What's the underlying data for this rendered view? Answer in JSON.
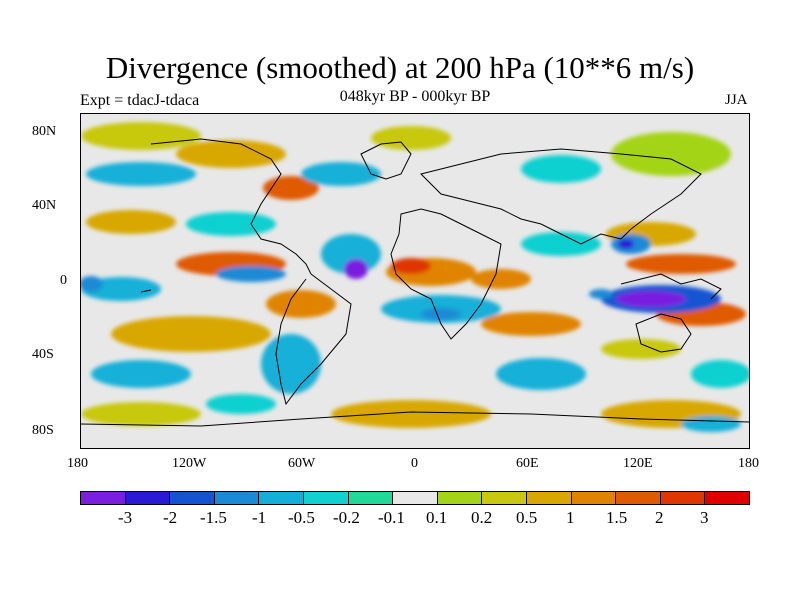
{
  "title": "Divergence (smoothed) at 200 hPa (10**6 m/s)",
  "subtitle": "048kyr BP - 000kyr BP",
  "expt_label": "Expt = tdacJ-tdaca",
  "season": "JJA",
  "y_axis": {
    "ticks": [
      "80N",
      "40N",
      "0",
      "40S",
      "80S"
    ]
  },
  "x_axis": {
    "ticks": [
      "180",
      "120W",
      "60W",
      "0",
      "60E",
      "120E",
      "180"
    ]
  },
  "colorbar": {
    "colors": [
      "#7a1fe0",
      "#2a1ad6",
      "#1454d2",
      "#1a8ad6",
      "#12b0d8",
      "#10d0d0",
      "#20d89a",
      "#e8e8e8",
      "#a4d418",
      "#c8c810",
      "#d8a800",
      "#e08400",
      "#e05a00",
      "#e03600",
      "#e00000"
    ],
    "labels": [
      "-3",
      "-2",
      "-1.5",
      "-1",
      "-0.5",
      "-0.2",
      "-0.1",
      "0.1",
      "0.2",
      "0.5",
      "1",
      "1.5",
      "2",
      "3"
    ]
  },
  "colors": {
    "background": "#e8e8e8",
    "coast": "#000000"
  }
}
